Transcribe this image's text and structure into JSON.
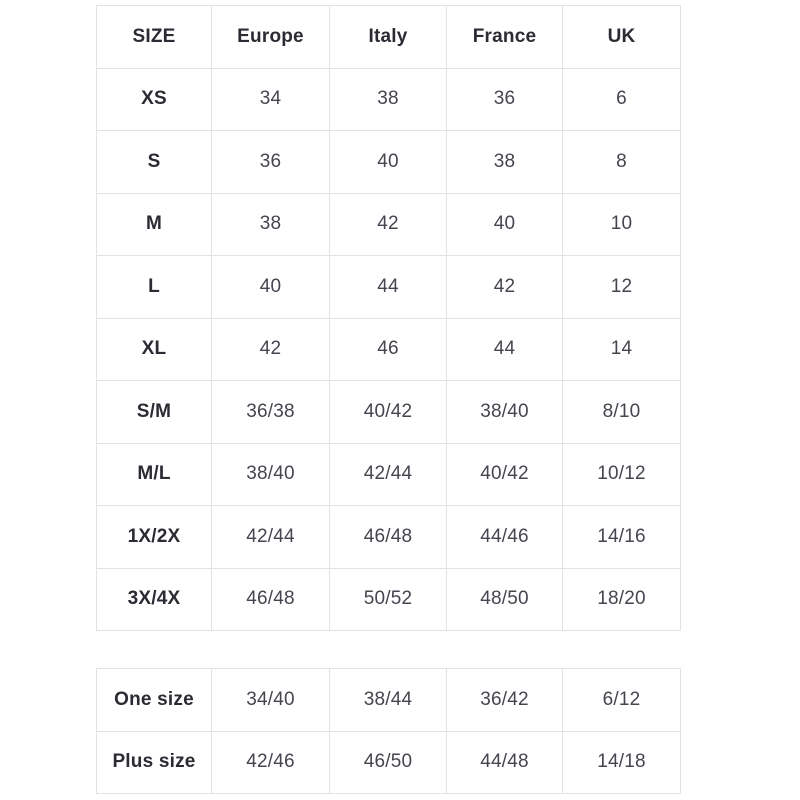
{
  "main_table": {
    "headers": [
      "SIZE",
      "Europe",
      "Italy",
      "France",
      "UK"
    ],
    "rows": [
      [
        "XS",
        "34",
        "38",
        "36",
        "6"
      ],
      [
        "S",
        "36",
        "40",
        "38",
        "8"
      ],
      [
        "M",
        "38",
        "42",
        "40",
        "10"
      ],
      [
        "L",
        "40",
        "44",
        "42",
        "12"
      ],
      [
        "XL",
        "42",
        "46",
        "44",
        "14"
      ],
      [
        "S/M",
        "36/38",
        "40/42",
        "38/40",
        "8/10"
      ],
      [
        "M/L",
        "38/40",
        "42/44",
        "40/42",
        "10/12"
      ],
      [
        "1X/2X",
        "42/44",
        "46/48",
        "44/46",
        "14/16"
      ],
      [
        "3X/4X",
        "46/48",
        "50/52",
        "48/50",
        "18/20"
      ]
    ]
  },
  "secondary_table": {
    "rows": [
      [
        "One size",
        "34/40",
        "38/44",
        "36/42",
        "6/12"
      ],
      [
        "Plus size",
        "42/46",
        "46/50",
        "44/48",
        "14/18"
      ]
    ]
  },
  "colors": {
    "background": "#ffffff",
    "border": "#e2e2e2",
    "header_text": "#2b2b34",
    "cell_text": "#45454f"
  }
}
